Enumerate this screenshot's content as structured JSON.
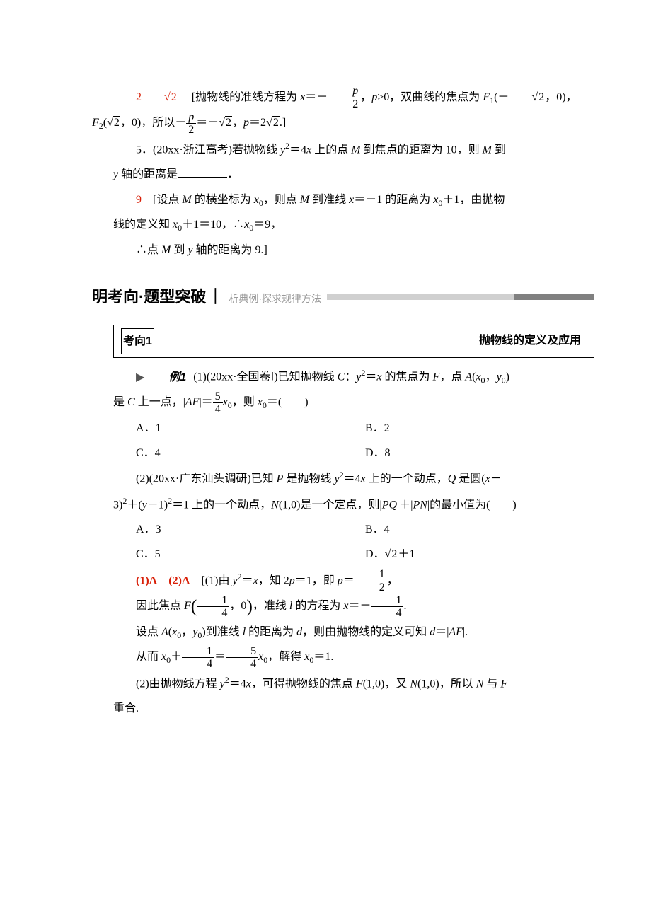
{
  "sol4": {
    "ans": "2√2",
    "line1_a": "[抛物线的准线方程为 ",
    "line1_b": "x",
    "line1_c": "＝－",
    "frac1_num": "p",
    "frac1_den": "2",
    "line1_d": "，",
    "line1_e": "p",
    "line1_f": ">0，双曲线的焦点为 ",
    "line1_g": "F",
    "line1_h": "(－",
    "sqrt2a": "2",
    "line1_i": "，0)，",
    "line2_a": "F",
    "line2_b": "(",
    "sqrt2b": "2",
    "line2_c": "，0)，所以－",
    "frac2_num": "p",
    "frac2_den": "2",
    "line2_d": "＝－",
    "sqrt2c": "2",
    "line2_e": "，",
    "line2_f": "p",
    "line2_g": "＝2",
    "sqrt2d": "2",
    "line2_h": ".]"
  },
  "q5": {
    "num": "5．",
    "src": "(20xx·浙江高考)",
    "t1": "若抛物线 ",
    "t2": "y",
    "t3": "＝4",
    "t4": "x",
    "t5": " 上的点 ",
    "t6": "M",
    "t7": " 到焦点的距离为 10，则 ",
    "t8": "M",
    "t9": " 到",
    "line2a": "y",
    "line2b": " 轴的距离是",
    "period": "．"
  },
  "sol5": {
    "ans": "9",
    "a": "[设点 ",
    "b": "M",
    "c": " 的横坐标为 ",
    "d": "x",
    "e": "，则点 ",
    "f": "M",
    "g": " 到准线 ",
    "h": "x",
    "i": "＝－1 的距离为 ",
    "j": "x",
    "k": "＋1，由抛物",
    "l2a": "线的定义知 ",
    "l2b": "x",
    "l2c": "＋1＝10，∴",
    "l2d": "x",
    "l2e": "＝9，",
    "l3a": "∴点 ",
    "l3b": "M",
    "l3c": " 到 ",
    "l3d": "y",
    "l3e": " 轴的距离为 9.]"
  },
  "sectionHeader": {
    "main1": "明考向",
    "dot": "·",
    "main2": "题型突破",
    "bar": "｜",
    "sub": "析典例·探求规律方法"
  },
  "topic": {
    "label": "考向1",
    "title": "抛物线的定义及应用"
  },
  "ex1": {
    "tag": "例1",
    "p1_a": "(1)(20xx·全国卷Ⅰ)已知抛物线 ",
    "p1_b": "C",
    "p1_c": "：",
    "p1_d": "y",
    "p1_e": "＝",
    "p1_f": "x",
    "p1_g": " 的焦点为 ",
    "p1_h": "F",
    "p1_i": "，点 ",
    "p1_j": "A",
    "p1_k": "(",
    "p1_l": "x",
    "p1_m": "，",
    "p1_n": "y",
    "p1_o": ")",
    "p2_a": "是 ",
    "p2_b": "C",
    "p2_c": " 上一点，|",
    "p2_d": "AF",
    "p2_e": "|＝",
    "frac54_num": "5",
    "frac54_den": "4",
    "p2_f": "x",
    "p2_g": "，则 ",
    "p2_h": "x",
    "p2_i": "＝(　　)",
    "optA": "A．1",
    "optB": "B．2",
    "optC": "C．4",
    "optD": "D．8",
    "p3_a": "(2)(20xx·广东汕头调研)已知 ",
    "p3_b": "P",
    "p3_c": " 是抛物线 ",
    "p3_d": "y",
    "p3_e": "＝4",
    "p3_f": "x",
    "p3_g": " 上的一个动点，",
    "p3_h": "Q",
    "p3_i": " 是圆(",
    "p3_j": "x",
    "p3_k": "－",
    "p4_a": "3)",
    "p4_b": "＋(",
    "p4_c": "y",
    "p4_d": "－1)",
    "p4_e": "＝1 上的一个动点，",
    "p4_f": "N",
    "p4_g": "(1,0)是一个定点，则|",
    "p4_h": "PQ",
    "p4_i": "|＋|",
    "p4_j": "PN",
    "p4_k": "|的最小值为(　　)",
    "opt2A": "A．3",
    "opt2B": "B．4",
    "opt2C": "C．5",
    "opt2D_a": "D．",
    "opt2D_b": "2",
    "opt2D_c": "＋1"
  },
  "sol_ex": {
    "ans1": "(1)A",
    "ans2": "(2)A",
    "a": "[(1)由 ",
    "b": "y",
    "c": "＝",
    "d": "x",
    "e": "，知 2",
    "f": "p",
    "g": "＝1，即 ",
    "h": "p",
    "i": "＝",
    "frac12_num": "1",
    "frac12_den": "2",
    "j": "，",
    "l2a": "因此焦点 ",
    "l2b": "F",
    "frac14a_num": "1",
    "frac14a_den": "4",
    "l2c": "，0",
    "l2d": "，准线 ",
    "l2e": "l",
    "l2f": " 的方程为 ",
    "l2g": "x",
    "l2h": "＝－",
    "frac14b_num": "1",
    "frac14b_den": "4",
    "l2i": ".",
    "l3a": "设点 ",
    "l3b": "A",
    "l3c": "(",
    "l3d": "x",
    "l3e": "，",
    "l3f": "y",
    "l3g": ")到准线 ",
    "l3h": "l",
    "l3i": " 的距离为 ",
    "l3j": "d",
    "l3k": "，则由抛物线的定义可知 ",
    "l3l": "d",
    "l3m": "＝|",
    "l3n": "AF",
    "l3o": "|.",
    "l4a": "从而 ",
    "l4b": "x",
    "l4c": "＋",
    "frac14c_num": "1",
    "frac14c_den": "4",
    "l4d": "＝",
    "frac54b_num": "5",
    "frac54b_den": "4",
    "l4e": "x",
    "l4f": "，解得 ",
    "l4g": "x",
    "l4h": "＝1.",
    "l5a": "(2)由抛物线方程 ",
    "l5b": "y",
    "l5c": "＝4",
    "l5d": "x",
    "l5e": "，可得抛物线的焦点 ",
    "l5f": "F",
    "l5g": "(1,0)，又 ",
    "l5h": "N",
    "l5i": "(1,0)，所以 ",
    "l5j": "N",
    "l5k": " 与 ",
    "l5l": "F",
    "l6": "重合."
  }
}
